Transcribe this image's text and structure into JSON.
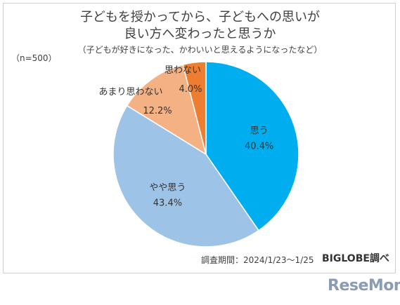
{
  "chart_data": {
    "type": "pie",
    "title": [
      "子どもを授かってから、子どもへの思いが",
      "良い方へ変わったと思うか"
    ],
    "subtitle": "（子どもが好きになった、かわいいと思えるようになったなど）",
    "sample_size": "（n=500）",
    "slices": [
      {
        "label": "思う",
        "value": 40.4,
        "value_label": "40.4%",
        "color": "#00aeef"
      },
      {
        "label": "やや思う",
        "value": 43.4,
        "value_label": "43.4%",
        "color": "#9dc3e6"
      },
      {
        "label": "あまり思わない",
        "value": 12.2,
        "value_label": "12.2%",
        "color": "#f4b183"
      },
      {
        "label": "思わない",
        "value": 4.0,
        "value_label": "4.0%",
        "color": "#ed7d31"
      }
    ],
    "start_angle_deg": 0,
    "direction": "clockwise"
  },
  "footer": {
    "note": "調査期間：2024/1/23～1/25",
    "source": "BIGLOBE調べ"
  },
  "watermark": "ReseMom"
}
